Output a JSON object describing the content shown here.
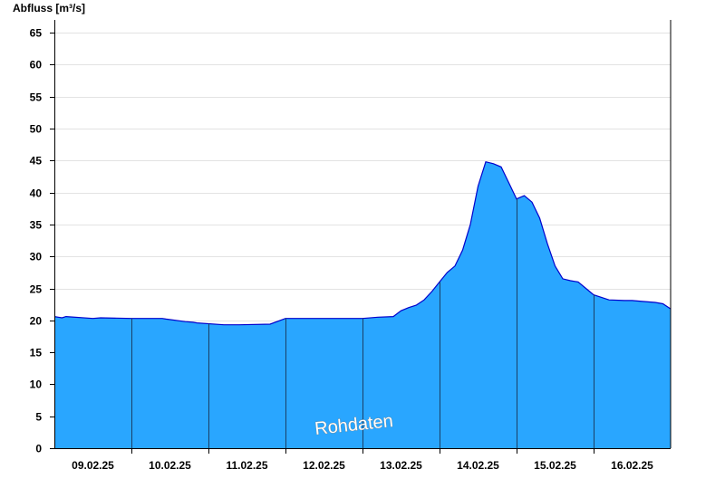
{
  "chart_data": {
    "type": "area",
    "ylabel": "Abfluss [m³/s]",
    "ylim": [
      0,
      67
    ],
    "yticks": [
      0,
      5,
      10,
      15,
      20,
      25,
      30,
      35,
      40,
      45,
      50,
      55,
      60,
      65
    ],
    "xlim": [
      0,
      8
    ],
    "xlabels": [
      {
        "x": 0.5,
        "label": "09.02.25"
      },
      {
        "x": 1.5,
        "label": "10.02.25"
      },
      {
        "x": 2.5,
        "label": "11.02.25"
      },
      {
        "x": 3.5,
        "label": "12.02.25"
      },
      {
        "x": 4.5,
        "label": "13.02.25"
      },
      {
        "x": 5.5,
        "label": "14.02.25"
      },
      {
        "x": 6.5,
        "label": "15.02.25"
      },
      {
        "x": 7.5,
        "label": "16.02.25"
      }
    ],
    "day_separators": [
      1,
      2,
      3,
      4,
      5,
      6,
      7
    ],
    "grid": "horizontal",
    "fill_color": "#29a6ff",
    "line_color": "#0000cc",
    "watermark": "Rohdaten",
    "series": [
      {
        "x": [
          0,
          0.05,
          0.1,
          0.15,
          0.5,
          0.6,
          1.0,
          1.4,
          1.45,
          1.7,
          1.8,
          1.85,
          2.2,
          2.3,
          2.4,
          2.8,
          3.0,
          3.4,
          3.5,
          3.6,
          3.8,
          4.0,
          4.2,
          4.4,
          4.5,
          4.6,
          4.7,
          4.8,
          4.9,
          5.0,
          5.1,
          5.2,
          5.3,
          5.4,
          5.5,
          5.6,
          5.7,
          5.8,
          5.9,
          6.0,
          6.1,
          6.2,
          6.3,
          6.4,
          6.5,
          6.55,
          6.6,
          6.7,
          6.8,
          6.9,
          7.0,
          7.2,
          7.4,
          7.5,
          7.6,
          7.8,
          7.9,
          8.0
        ],
        "y": [
          20.6,
          20.5,
          20.4,
          20.6,
          20.3,
          20.4,
          20.3,
          20.3,
          20.2,
          19.8,
          19.7,
          19.6,
          19.3,
          19.3,
          19.3,
          19.4,
          20.3,
          20.3,
          20.3,
          20.3,
          20.3,
          20.3,
          20.5,
          20.6,
          21.5,
          22.0,
          22.4,
          23.2,
          24.5,
          26.0,
          27.5,
          28.5,
          31.0,
          35.0,
          41.0,
          44.8,
          44.5,
          44.0,
          41.5,
          39.0,
          39.5,
          38.5,
          36.0,
          32.0,
          28.5,
          27.5,
          26.5,
          26.2,
          26.0,
          25.0,
          24.0,
          23.2,
          23.1,
          23.1,
          23.0,
          22.8,
          22.6,
          21.8
        ]
      }
    ]
  }
}
